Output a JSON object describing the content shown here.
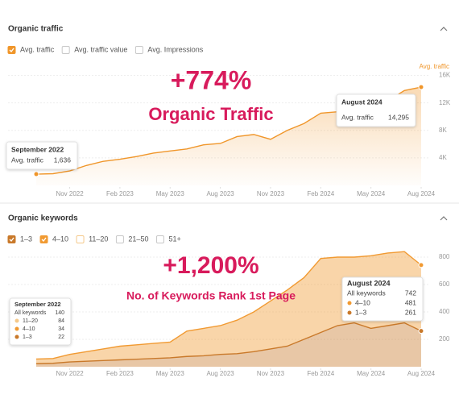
{
  "chart_data": [
    {
      "type": "area",
      "title": "Organic traffic",
      "extra_filters": [
        {
          "label": "Avg. traffic value"
        },
        {
          "label": "Avg. Impressions"
        }
      ],
      "y_label": "Avg. traffic",
      "x": [
        "2022-09",
        "2022-10",
        "2022-11",
        "2022-12",
        "2023-01",
        "2023-02",
        "2023-03",
        "2023-04",
        "2023-05",
        "2023-06",
        "2023-07",
        "2023-08",
        "2023-09",
        "2023-10",
        "2023-11",
        "2023-12",
        "2024-01",
        "2024-02",
        "2024-03",
        "2024-04",
        "2024-05",
        "2024-06",
        "2024-07",
        "2024-08"
      ],
      "xlim": [
        "2022-09",
        "2024-08"
      ],
      "xticks": [
        {
          "value": "2022-11",
          "label": "Nov 2022"
        },
        {
          "value": "2023-02",
          "label": "Feb 2023"
        },
        {
          "value": "2023-05",
          "label": "May 2023"
        },
        {
          "value": "2023-08",
          "label": "Aug 2023"
        },
        {
          "value": "2023-11",
          "label": "Nov 2023"
        },
        {
          "value": "2024-02",
          "label": "Feb 2024"
        },
        {
          "value": "2024-05",
          "label": "May 2024"
        },
        {
          "value": "2024-08",
          "label": "Aug 2024"
        }
      ],
      "series": [
        {
          "name": "Avg. traffic",
          "color": "#f0962a",
          "values": [
            1636,
            1700,
            2100,
            2900,
            3500,
            3800,
            4200,
            4700,
            5000,
            5300,
            5900,
            6100,
            7100,
            7400,
            6700,
            8000,
            9000,
            10500,
            10700,
            10700,
            11700,
            12300,
            13800,
            14295
          ]
        }
      ],
      "ylim": [
        0,
        17000
      ],
      "yticks": [
        {
          "value": 4000,
          "label": "4K"
        },
        {
          "value": 8000,
          "label": "8K"
        },
        {
          "value": 12000,
          "label": "12K"
        },
        {
          "value": 16000,
          "label": "16K"
        }
      ],
      "grid": true,
      "headline": "+774%",
      "subhead": "Organic Traffic",
      "annotation_color": "#d81b5c",
      "tooltips": [
        {
          "title": "September 2022",
          "x": "2022-09",
          "label": "Avg. traffic",
          "value": 1636,
          "value_label": "1,636"
        },
        {
          "title": "August 2024",
          "x": "2024-08",
          "label": "Avg. traffic",
          "value": 14295,
          "value_label": "14,295"
        }
      ]
    },
    {
      "type": "stacked_area",
      "title": "Organic keywords",
      "extra_filters": [
        {
          "label": "11–20",
          "color": "#f5c98a"
        },
        {
          "label": "21–50"
        },
        {
          "label": "51+"
        }
      ],
      "x": [
        "2022-09",
        "2022-10",
        "2022-11",
        "2022-12",
        "2023-01",
        "2023-02",
        "2023-03",
        "2023-04",
        "2023-05",
        "2023-06",
        "2023-07",
        "2023-08",
        "2023-09",
        "2023-10",
        "2023-11",
        "2023-12",
        "2024-01",
        "2024-02",
        "2024-03",
        "2024-04",
        "2024-05",
        "2024-06",
        "2024-07",
        "2024-08"
      ],
      "xlim": [
        "2022-09",
        "2024-08"
      ],
      "xticks": [
        {
          "value": "2022-11",
          "label": "Nov 2022"
        },
        {
          "value": "2023-02",
          "label": "Feb 2023"
        },
        {
          "value": "2023-05",
          "label": "May 2023"
        },
        {
          "value": "2023-08",
          "label": "Aug 2023"
        },
        {
          "value": "2023-11",
          "label": "Nov 2023"
        },
        {
          "value": "2024-02",
          "label": "Feb 2024"
        },
        {
          "value": "2024-05",
          "label": "May 2024"
        },
        {
          "value": "2024-08",
          "label": "Aug 2024"
        }
      ],
      "series": [
        {
          "name": "1–3",
          "color": "#c9792a",
          "values": [
            22,
            25,
            35,
            40,
            45,
            50,
            55,
            60,
            65,
            75,
            80,
            90,
            95,
            110,
            130,
            150,
            200,
            250,
            300,
            320,
            280,
            300,
            320,
            261
          ]
        },
        {
          "name": "4–10",
          "color": "#f19a32",
          "values": [
            34,
            35,
            55,
            70,
            85,
            100,
            105,
            110,
            115,
            185,
            200,
            210,
            245,
            290,
            350,
            410,
            450,
            540,
            500,
            480,
            530,
            530,
            520,
            481
          ]
        }
      ],
      "ylim": [
        0,
        900
      ],
      "yticks": [
        200,
        400,
        600,
        800
      ],
      "grid": true,
      "headline": "+1,200%",
      "subhead": "No. of Keywords Rank 1st Page",
      "annotation_color": "#d81b5c",
      "tooltips": [
        {
          "title": "September 2022",
          "rows": [
            {
              "label": "All keywords",
              "value": 140
            },
            {
              "label": "11–20",
              "value": 84,
              "color": "#f5c98a"
            },
            {
              "label": "4–10",
              "value": 34,
              "color": "#f19a32"
            },
            {
              "label": "1–3",
              "value": 22,
              "color": "#c9792a"
            }
          ]
        },
        {
          "title": "August 2024",
          "rows": [
            {
              "label": "All keywords",
              "value": 742
            },
            {
              "label": "4–10",
              "value": 481,
              "color": "#f19a32"
            },
            {
              "label": "1–3",
              "value": 261,
              "color": "#c9792a"
            }
          ]
        }
      ]
    }
  ]
}
